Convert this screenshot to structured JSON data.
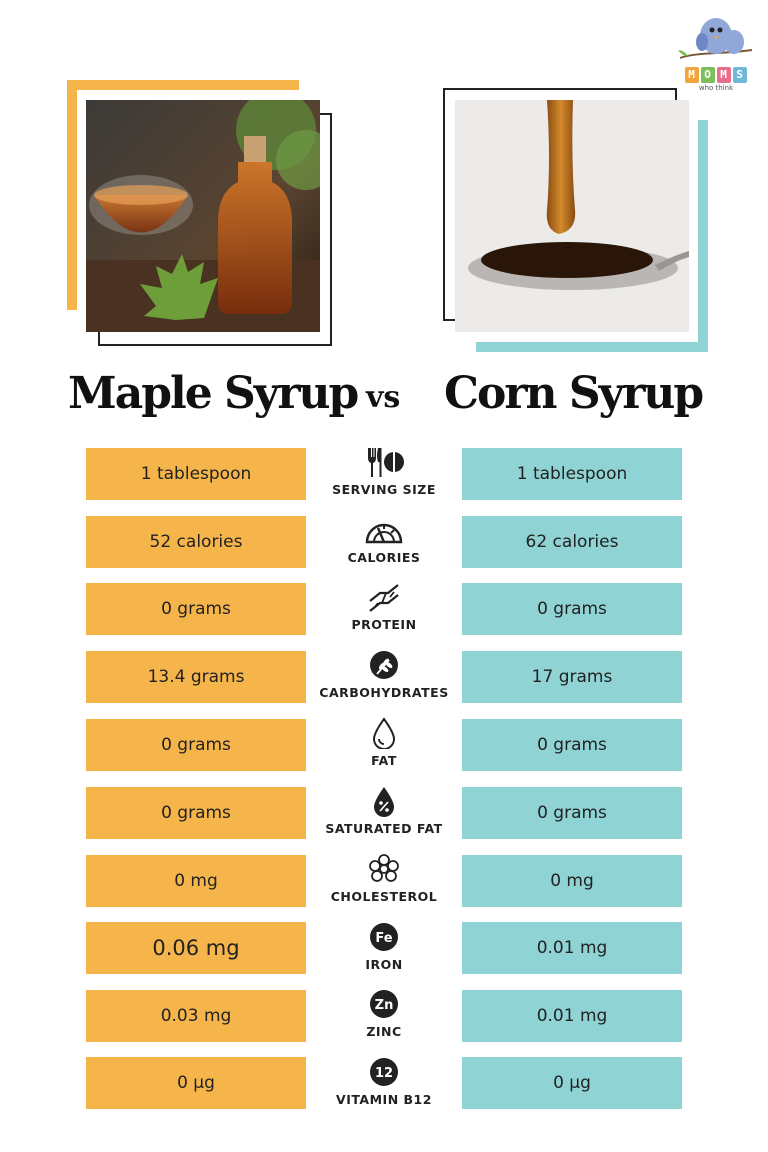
{
  "logo": {
    "letters": [
      "M",
      "O",
      "M",
      "S"
    ],
    "subtitle": "who think"
  },
  "titles": {
    "left": "Maple Syrup",
    "vs": "vs",
    "right": "Corn Syrup"
  },
  "colors": {
    "maple": "#f6b54a",
    "corn": "#8fd3d5"
  },
  "rows": [
    {
      "label": "SERVING SIZE",
      "icon": "utensils-plate-icon",
      "maple": "1 tablespoon",
      "corn": "1 tablespoon"
    },
    {
      "label": "CALORIES",
      "icon": "gauge-icon",
      "maple": "52 calories",
      "corn": "62 calories"
    },
    {
      "label": "PROTEIN",
      "icon": "dna-icon",
      "maple": "0 grams",
      "corn": "0 grams"
    },
    {
      "label": "CARBOHYDRATES",
      "icon": "wheat-icon",
      "maple": "13.4 grams",
      "corn": "17 grams"
    },
    {
      "label": "FAT",
      "icon": "drop-icon",
      "maple": "0 grams",
      "corn": "0 grams"
    },
    {
      "label": "SATURATED FAT",
      "icon": "percent-drop-icon",
      "maple": "0 grams",
      "corn": "0 grams"
    },
    {
      "label": "CHOLESTEROL",
      "icon": "molecule-icon",
      "maple": "0 mg",
      "corn": "0 mg"
    },
    {
      "label": "IRON",
      "icon": "fe-icon",
      "icon_text": "Fe",
      "maple": "0.06 mg",
      "corn": "0.01 mg"
    },
    {
      "label": "ZINC",
      "icon": "zn-icon",
      "icon_text": "Zn",
      "maple": "0.03 mg",
      "corn": "0.01 mg"
    },
    {
      "label": "VITAMIN B12",
      "icon": "b12-icon",
      "icon_text": "12",
      "maple": "0 µg",
      "corn": "0 µg"
    }
  ]
}
